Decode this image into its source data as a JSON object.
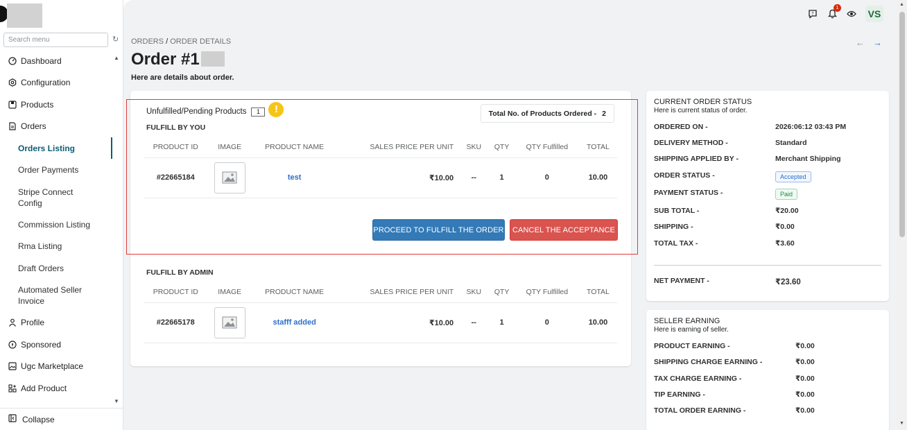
{
  "sidebar": {
    "search_placeholder": "Search menu",
    "items": [
      {
        "label": "Dashboard",
        "icon": "dashboard-icon"
      },
      {
        "label": "Configuration",
        "icon": "gear-icon"
      },
      {
        "label": "Products",
        "icon": "product-icon"
      },
      {
        "label": "Orders",
        "icon": "orders-icon"
      }
    ],
    "order_sub": [
      "Orders Listing",
      "Order Payments",
      "Stripe Connect Config",
      "Commission Listing",
      "Rma Listing",
      "Draft Orders",
      "Automated Seller Invoice"
    ],
    "items2": [
      {
        "label": "Profile",
        "icon": "person-icon"
      },
      {
        "label": "Sponsored",
        "icon": "sponsored-icon"
      },
      {
        "label": "Ugc Marketplace",
        "icon": "image-icon"
      },
      {
        "label": "Add Product",
        "icon": "add-product-icon"
      }
    ],
    "collapse_label": "Collapse"
  },
  "topbar": {
    "notification_count": "1",
    "avatar_initials": "VS"
  },
  "header": {
    "breadcrumb_root": "ORDERS",
    "breadcrumb_sep": "/",
    "breadcrumb_current": "ORDER DETAILS",
    "title": "Order #1",
    "subtitle": "Here are details about order."
  },
  "fulfill_you": {
    "unfulfilled_label": "Unfulfilled/Pending Products",
    "unfulfilled_count": "1",
    "total_label": "Total No. of Products Ordered -",
    "total_value": "2",
    "section": "FULFILL BY YOU",
    "columns": [
      "PRODUCT ID",
      "IMAGE",
      "PRODUCT NAME",
      "SALES PRICE PER UNIT",
      "SKU",
      "QTY",
      "QTY Fulfilled",
      "TOTAL"
    ],
    "rows": [
      {
        "id": "#22665184",
        "name": "test",
        "price": "₹10.00",
        "sku": "--",
        "qty": "1",
        "qty_fulfilled": "0",
        "total": "10.00"
      }
    ],
    "proceed_label": "PROCEED TO FULFILL THE ORDER",
    "cancel_label": "CANCEL THE ACCEPTANCE"
  },
  "fulfill_admin": {
    "section": "FULFILL BY ADMIN",
    "columns": [
      "PRODUCT ID",
      "IMAGE",
      "PRODUCT NAME",
      "SALES PRICE PER UNIT",
      "SKU",
      "QTY",
      "QTY Fulfilled",
      "TOTAL"
    ],
    "rows": [
      {
        "id": "#22665178",
        "name": "stafff added",
        "price": "₹10.00",
        "sku": "--",
        "qty": "1",
        "qty_fulfilled": "0",
        "total": "10.00"
      }
    ]
  },
  "order_status": {
    "title": "CURRENT ORDER STATUS",
    "subtitle": "Here is current status of order.",
    "fields": [
      {
        "k": "ORDERED ON -",
        "v": "2026:06:12 03:43 PM"
      },
      {
        "k": "DELIVERY METHOD -",
        "v": "Standard"
      },
      {
        "k": "SHIPPING APPLIED BY -",
        "v": "Merchant Shipping"
      },
      {
        "k": "ORDER STATUS -",
        "v": "Accepted"
      },
      {
        "k": "PAYMENT STATUS -",
        "v": "Paid"
      },
      {
        "k": "SUB TOTAL -",
        "v": "₹20.00"
      },
      {
        "k": "SHIPPING -",
        "v": "₹0.00"
      },
      {
        "k": "TOTAL TAX -",
        "v": "₹3.60"
      }
    ],
    "net_label": "NET PAYMENT -",
    "net_value": "₹23.60"
  },
  "seller_earning": {
    "title": "SELLER EARNING",
    "subtitle": "Here is earning of seller.",
    "fields": [
      {
        "k": "PRODUCT EARNING -",
        "v": "₹0.00"
      },
      {
        "k": "SHIPPING CHARGE EARNING -",
        "v": "₹0.00"
      },
      {
        "k": "TAX CHARGE EARNING -",
        "v": "₹0.00"
      },
      {
        "k": "TIP EARNING -",
        "v": "₹0.00"
      },
      {
        "k": "TOTAL ORDER EARNING -",
        "v": "₹0.00"
      }
    ]
  },
  "colors": {
    "accent": "#0c5d73",
    "primary_button": "#337ab7",
    "danger_button": "#d9534f",
    "highlight_border": "#e03a3a"
  }
}
